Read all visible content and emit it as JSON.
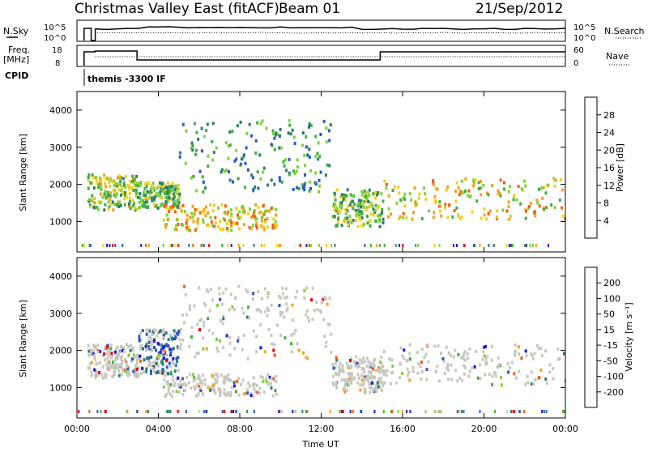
{
  "header": {
    "title": "Christmas Valley East (fitACF)",
    "beam": "Beam 01",
    "date": "21/Sep/2012"
  },
  "top_panels": {
    "nsky": {
      "label": "N.Sky",
      "yticks": [
        "10^5",
        "10^0"
      ],
      "right_label": "N.Search",
      "right_yticks": [
        "10^5",
        "10^0"
      ]
    },
    "freq": {
      "label_line1": "Freq.",
      "label_line2": "[MHz]",
      "yticks": [
        "18",
        "8"
      ],
      "right_label": "Nave",
      "right_yticks": [
        "60",
        "0"
      ]
    },
    "cpid": {
      "label": "CPID",
      "text": "themis -3300 IF"
    }
  },
  "colors": {
    "power": [
      "#1c1cc8",
      "#2a5ac0",
      "#2e7d6e",
      "#3fae3f",
      "#7fd23c",
      "#f0d020",
      "#f5a020",
      "#f06010",
      "#e80000"
    ],
    "velocity": [
      "#1c1cc8",
      "#2a5ac0",
      "#2e7d6e",
      "#3fae3f",
      "#7fd23c",
      "#c8c8c0",
      "#f5a020",
      "#f06010",
      "#e80000"
    ],
    "ground_scatter": "#c8c8c0"
  },
  "chart_data": [
    {
      "type": "heatmap",
      "name": "power",
      "ylabel": "Slant Range [km]",
      "xlabel": "",
      "x_ticks": [
        "00:00",
        "04:00",
        "08:00",
        "12:00",
        "16:00",
        "20:00",
        "00:00"
      ],
      "x_hours": [
        0,
        4,
        8,
        12,
        16,
        20,
        24
      ],
      "y_ticks": [
        1000,
        2000,
        3000,
        4000
      ],
      "ylim": [
        180,
        4500
      ],
      "xlim": [
        0,
        24
      ],
      "colorbar_label": "Power [dB]",
      "colorbar_ticks": [
        "28",
        "24",
        "20",
        "16",
        "12",
        "8",
        "4"
      ],
      "echo_bands": [
        {
          "t0": 0.5,
          "t1": 3.0,
          "r0": 1350,
          "r1": 2300,
          "level": 16
        },
        {
          "t0": 3.0,
          "t1": 5.0,
          "r0": 1400,
          "r1": 2100,
          "level": 14
        },
        {
          "t0": 4.2,
          "t1": 9.8,
          "r0": 800,
          "r1": 1500,
          "level": 22
        },
        {
          "t0": 5.0,
          "t1": 12.5,
          "r0": 1800,
          "r1": 3800,
          "level": 10
        },
        {
          "t0": 12.5,
          "t1": 15.0,
          "r0": 900,
          "r1": 1900,
          "level": 14
        },
        {
          "t0": 15.0,
          "t1": 24.0,
          "r0": 1100,
          "r1": 2200,
          "level": 20
        }
      ]
    },
    {
      "type": "heatmap",
      "name": "velocity",
      "ylabel": "Slant Range [km]",
      "xlabel": "Time UT",
      "x_ticks": [
        "00:00",
        "04:00",
        "08:00",
        "12:00",
        "16:00",
        "20:00",
        "00:00"
      ],
      "x_hours": [
        0,
        4,
        8,
        12,
        16,
        20,
        24
      ],
      "y_ticks": [
        1000,
        2000,
        3000,
        4000
      ],
      "ylim": [
        180,
        4500
      ],
      "xlim": [
        0,
        24
      ],
      "colorbar_label": "Velocity [m s⁻¹]",
      "colorbar_ticks": [
        "200",
        "100",
        "50",
        "15",
        "-15",
        "-50",
        "-100",
        "-200"
      ],
      "echo_bands": [
        {
          "t0": 0.5,
          "t1": 3.0,
          "r0": 1300,
          "r1": 2200,
          "level": 0
        },
        {
          "t0": 3.0,
          "t1": 5.0,
          "r0": 1400,
          "r1": 2600,
          "level": 60
        },
        {
          "t0": 4.2,
          "t1": 9.8,
          "r0": 800,
          "r1": 1400,
          "level": 0
        },
        {
          "t0": 5.0,
          "t1": 12.5,
          "r0": 1800,
          "r1": 3800,
          "level": 20
        },
        {
          "t0": 12.5,
          "t1": 15.0,
          "r0": 900,
          "r1": 1900,
          "level": 0
        },
        {
          "t0": 15.0,
          "t1": 24.0,
          "r0": 1100,
          "r1": 2200,
          "level": 0
        }
      ]
    }
  ]
}
